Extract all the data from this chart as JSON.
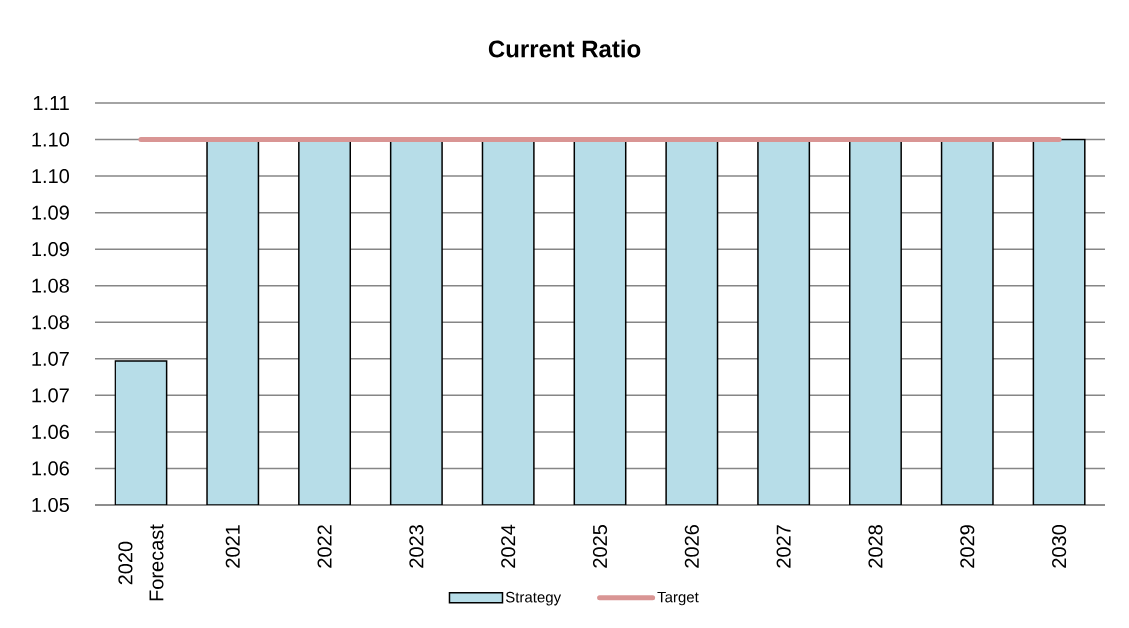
{
  "chart_data": {
    "type": "bar",
    "title": "Current Ratio",
    "categories": [
      "2020 Forecast",
      "2021",
      "2022",
      "2023",
      "2024",
      "2025",
      "2026",
      "2027",
      "2028",
      "2029",
      "2030"
    ],
    "series": [
      {
        "name": "Strategy",
        "color": "#b7dde8",
        "values": [
          1.0697,
          1.1,
          1.1,
          1.1,
          1.1,
          1.1,
          1.1,
          1.1,
          1.1,
          1.1,
          1.1
        ]
      },
      {
        "name": "Target",
        "type": "line",
        "color": "#d99594",
        "values": [
          1.1,
          1.1,
          1.1,
          1.1,
          1.1,
          1.1,
          1.1,
          1.1,
          1.1,
          1.1,
          1.1
        ]
      }
    ],
    "ylim": [
      1.05,
      1.105
    ],
    "yticks": [
      1.05,
      {
        "value": 1.055,
        "label": "1.06"
      },
      1.06,
      {
        "value": 1.065,
        "label": "1.07"
      },
      1.07,
      {
        "value": 1.075,
        "label": "1.08"
      },
      1.08,
      {
        "value": 1.085,
        "label": "1.09"
      },
      1.09,
      {
        "value": 1.095,
        "label": "1.10"
      },
      {
        "value": 1.1,
        "label": "1.10"
      },
      {
        "value": 1.105,
        "label": "1.11"
      }
    ],
    "grid": "y",
    "legend": "bottom"
  }
}
